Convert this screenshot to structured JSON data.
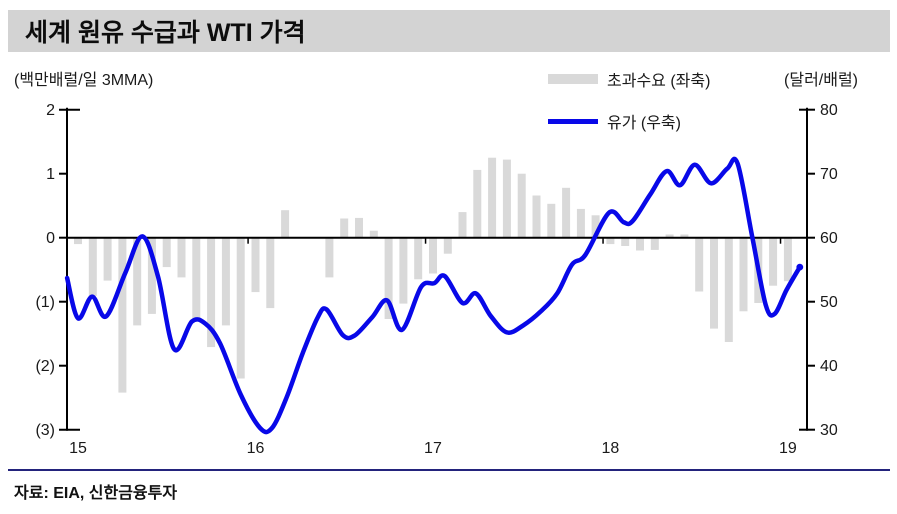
{
  "title": "세계 원유 수급과 WTI 가격",
  "left_unit": "(백만배럴/일  3MMA)",
  "right_unit": "(달러/배럴)",
  "source": "자료: EIA, 신한금융투자",
  "colors": {
    "title_bar_bg": "#D3D3D3",
    "bar": "#D9D9D9",
    "line": "#0808E8",
    "axis": "#000000",
    "source_rule": "#23237C"
  },
  "legend": [
    {
      "label": "초과수요 (좌축)",
      "type": "bar",
      "color": "#D9D9D9"
    },
    {
      "label": "유가 (우축)",
      "type": "line",
      "color": "#0808E8"
    }
  ],
  "chart_data": {
    "type": "bar+line",
    "title": "세계 원유 수급과 WTI 가격",
    "grid": false,
    "legend_position": "top",
    "x_axis": {
      "year_labels": [
        "15",
        "16",
        "17",
        "18",
        "19"
      ],
      "months_since": "2015-01"
    },
    "left_axis": {
      "label": "(백만배럴/일 3MMA)",
      "range": [
        -3,
        2
      ],
      "tick_values": [
        2,
        1,
        0,
        -1,
        -2,
        -3
      ],
      "tick_labels": [
        "2",
        "1",
        "0",
        "(1)",
        "(2)",
        "(3)"
      ]
    },
    "right_axis": {
      "label": "(달러/배럴)",
      "range": [
        30,
        80
      ],
      "tick_values": [
        80,
        70,
        60,
        50,
        40,
        30
      ],
      "tick_labels": [
        "80",
        "70",
        "60",
        "50",
        "40",
        "30"
      ]
    },
    "series": [
      {
        "name": "초과수요 (좌축)",
        "type": "bar",
        "axis": "left",
        "color": "#D9D9D9",
        "x_months_since_2015_01": true,
        "values": [
          -0.1,
          -0.91,
          -0.67,
          -2.42,
          -1.37,
          -1.19,
          -0.46,
          -0.62,
          -1.27,
          -1.71,
          -1.37,
          -2.2,
          -0.85,
          -1.1,
          0.43,
          0.0,
          0.0,
          -0.62,
          0.3,
          0.31,
          0.11,
          -1.27,
          -1.03,
          -0.65,
          -0.56,
          -0.25,
          0.4,
          1.06,
          1.25,
          1.22,
          1.0,
          0.66,
          0.53,
          0.78,
          0.45,
          0.35,
          -0.1,
          -0.13,
          -0.2,
          -0.19,
          0.05,
          0.05,
          -0.84,
          -1.42,
          -1.63,
          -1.15,
          -1.02,
          -0.75,
          -0.68
        ]
      },
      {
        "name": "유가 (우축)",
        "type": "line",
        "axis": "right",
        "color": "#0808E8",
        "x_months_since_2015_01": true,
        "points": [
          [
            -0.74,
            53.7
          ],
          [
            0,
            47.4
          ],
          [
            0.95,
            50.8
          ],
          [
            1.9,
            47.7
          ],
          [
            3.2,
            54.5
          ],
          [
            4.35,
            60.2
          ],
          [
            5.4,
            54.0
          ],
          [
            6.5,
            42.6
          ],
          [
            7.7,
            46.9
          ],
          [
            8.6,
            46.6
          ],
          [
            9.6,
            43.5
          ],
          [
            11,
            35.5
          ],
          [
            12.3,
            30.3
          ],
          [
            13.1,
            30.2
          ],
          [
            14.1,
            35.0
          ],
          [
            15.2,
            42.0
          ],
          [
            16.2,
            47.5
          ],
          [
            16.8,
            48.8
          ],
          [
            17.9,
            44.8
          ],
          [
            18.7,
            44.7
          ],
          [
            19.9,
            47.6
          ],
          [
            20.9,
            50.2
          ],
          [
            21.9,
            45.6
          ],
          [
            23.2,
            52.3
          ],
          [
            24.1,
            52.9
          ],
          [
            24.8,
            54.0
          ],
          [
            26,
            49.8
          ],
          [
            26.9,
            51.3
          ],
          [
            27.9,
            47.8
          ],
          [
            29,
            45.2
          ],
          [
            30.1,
            46.3
          ],
          [
            31.3,
            48.5
          ],
          [
            32.4,
            51.3
          ],
          [
            33.4,
            55.8
          ],
          [
            34.3,
            57.3
          ],
          [
            35.9,
            63.9
          ],
          [
            36.9,
            62.4
          ],
          [
            37.5,
            62.6
          ],
          [
            38.7,
            66.8
          ],
          [
            39.8,
            70.4
          ],
          [
            40.7,
            68.2
          ],
          [
            41.7,
            71.4
          ],
          [
            42.8,
            68.5
          ],
          [
            43.9,
            70.8
          ],
          [
            44.6,
            71.6
          ],
          [
            45.6,
            60.0
          ],
          [
            46.5,
            49.5
          ],
          [
            47.1,
            48.1
          ],
          [
            47.9,
            51.8
          ],
          [
            48.8,
            55.4
          ]
        ]
      }
    ]
  }
}
